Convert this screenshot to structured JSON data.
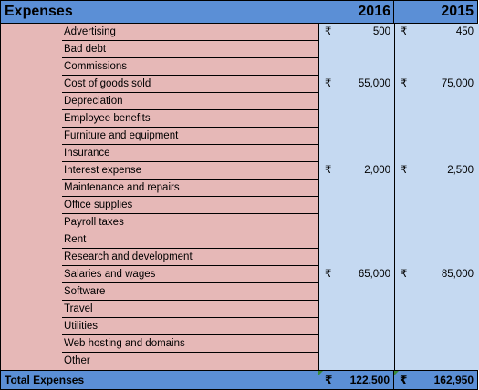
{
  "header": {
    "title": "Expenses",
    "year_a": "2016",
    "year_b": "2015"
  },
  "currency_symbol": "₹",
  "rows": [
    {
      "label": "Advertising",
      "v2016": "500",
      "v2015": "450"
    },
    {
      "label": "Bad debt",
      "v2016": "",
      "v2015": ""
    },
    {
      "label": "Commissions",
      "v2016": "",
      "v2015": ""
    },
    {
      "label": "Cost of goods sold",
      "v2016": "55,000",
      "v2015": "75,000"
    },
    {
      "label": "Depreciation",
      "v2016": "",
      "v2015": ""
    },
    {
      "label": "Employee benefits",
      "v2016": "",
      "v2015": ""
    },
    {
      "label": "Furniture and equipment",
      "v2016": "",
      "v2015": ""
    },
    {
      "label": "Insurance",
      "v2016": "",
      "v2015": ""
    },
    {
      "label": "Interest expense",
      "v2016": "2,000",
      "v2015": "2,500"
    },
    {
      "label": "Maintenance and repairs",
      "v2016": "",
      "v2015": ""
    },
    {
      "label": "Office supplies",
      "v2016": "",
      "v2015": ""
    },
    {
      "label": "Payroll taxes",
      "v2016": "",
      "v2015": ""
    },
    {
      "label": "Rent",
      "v2016": "",
      "v2015": ""
    },
    {
      "label": "Research and development",
      "v2016": "",
      "v2015": ""
    },
    {
      "label": "Salaries and wages",
      "v2016": "65,000",
      "v2015": "85,000"
    },
    {
      "label": "Software",
      "v2016": "",
      "v2015": ""
    },
    {
      "label": "Travel",
      "v2016": "",
      "v2015": ""
    },
    {
      "label": "Utilities",
      "v2016": "",
      "v2015": ""
    },
    {
      "label": "Web hosting and domains",
      "v2016": "",
      "v2015": ""
    },
    {
      "label": "Other",
      "v2016": "",
      "v2015": ""
    }
  ],
  "total": {
    "label": "Total Expenses",
    "v2016": "122,500",
    "v2015": "162,950"
  },
  "colors": {
    "header_blue": "#5b8fd6",
    "category_pink": "#e6b8b7",
    "value_lightblue": "#c5d9f1",
    "error_indicator_green": "#3a8a3a"
  }
}
